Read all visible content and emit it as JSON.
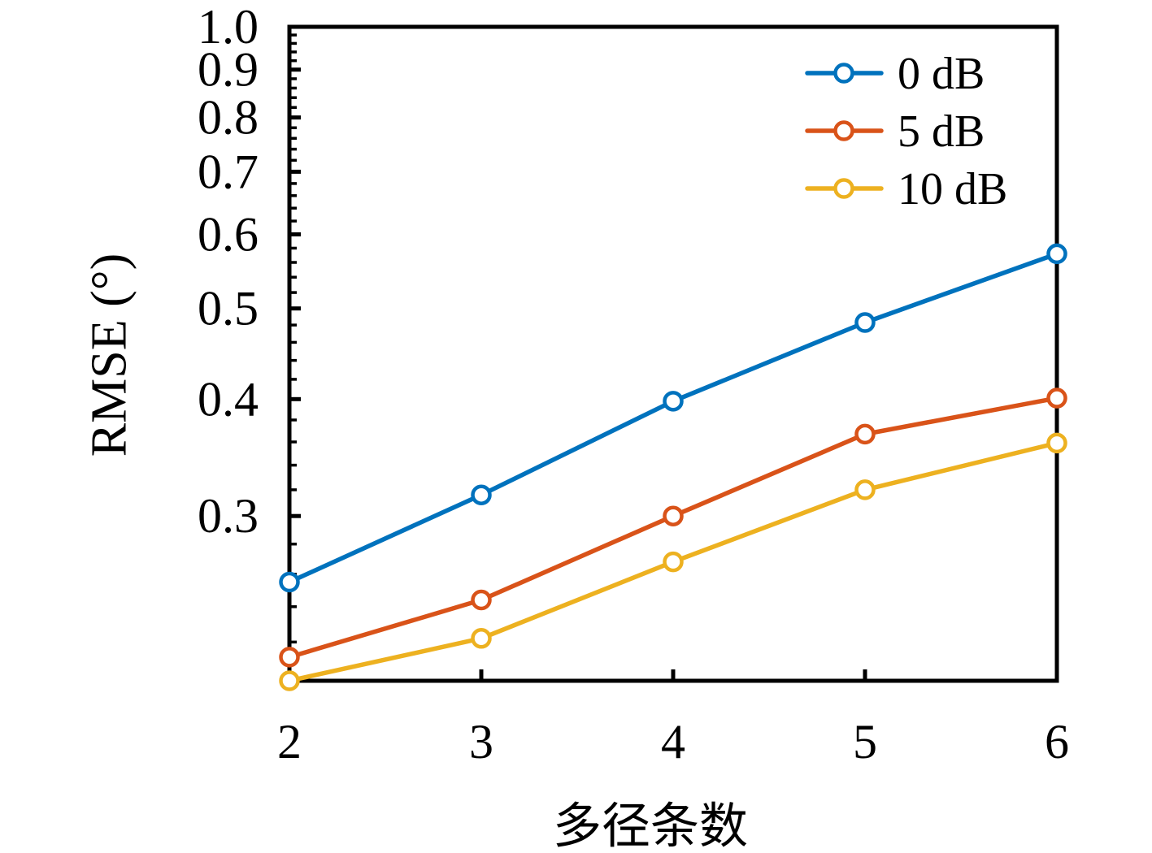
{
  "figure": {
    "background": "#ffffff",
    "axis_color": "#000000"
  },
  "chart_data": {
    "type": "line",
    "title": "",
    "xlabel": "多径条数",
    "ylabel": "RMSE (°)",
    "x": [
      2,
      3,
      4,
      5,
      6
    ],
    "series": [
      {
        "name": "0 dB",
        "color": "#0072BD",
        "values": [
          0.255,
          0.316,
          0.398,
          0.483,
          0.572
        ]
      },
      {
        "name": "5 dB",
        "color": "#D95319",
        "values": [
          0.212,
          0.244,
          0.3,
          0.367,
          0.401
        ]
      },
      {
        "name": "10 dB",
        "color": "#EDB120",
        "values": [
          0.2,
          0.222,
          0.268,
          0.32,
          0.359
        ]
      }
    ],
    "x_scale": "linear",
    "y_scale": "log",
    "xlim": [
      2,
      6
    ],
    "ylim": [
      0.2,
      1.0
    ],
    "x_ticks": [
      2,
      3,
      4,
      5,
      6
    ],
    "x_tick_labels": [
      "2",
      "3",
      "4",
      "5",
      "6"
    ],
    "y_ticks": [
      0.3,
      0.4,
      0.5,
      0.6,
      0.7,
      0.8,
      0.9,
      1.0
    ],
    "y_tick_labels": [
      "0.3",
      "0.4",
      "0.5",
      "0.6",
      "0.7",
      "0.8",
      "0.9",
      "1.0"
    ],
    "y_minor_tick_step": 0.02,
    "grid": false,
    "marker": "open-circle",
    "legend": {
      "position": "top-right",
      "frame": false,
      "entries": [
        "0 dB",
        "5 dB",
        "10 dB"
      ]
    }
  }
}
